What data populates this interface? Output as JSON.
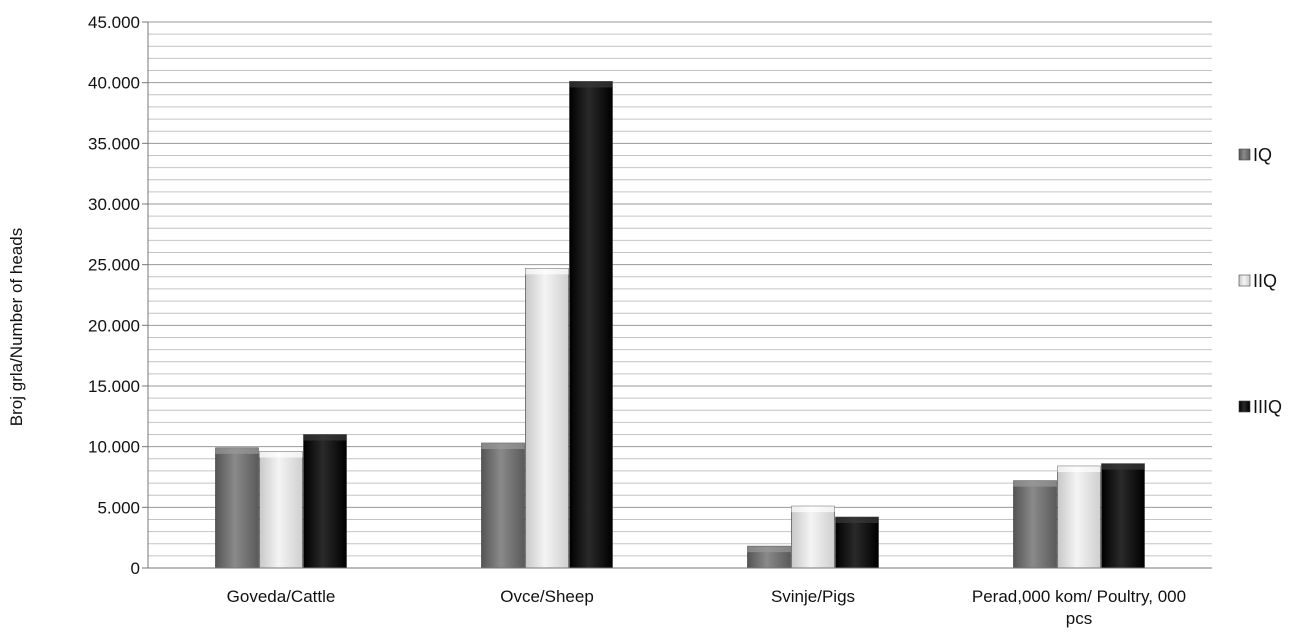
{
  "chart_data": {
    "type": "bar",
    "title": "",
    "xlabel": "",
    "ylabel": "Broj grla/Number of heads",
    "ylim": [
      0,
      45000
    ],
    "y_ticks": [
      "0",
      "5.000",
      "10.000",
      "15.000",
      "20.000",
      "25.000",
      "30.000",
      "35.000",
      "40.000",
      "45.000"
    ],
    "grid": true,
    "legend_position": "right",
    "categories": [
      [
        "Goveda/Cattle"
      ],
      [
        "Ovce/Sheep"
      ],
      [
        "Svinje/Pigs"
      ],
      [
        "Perad,000 kom/ Poultry, 000",
        "pcs"
      ]
    ],
    "series": [
      {
        "name": "IQ",
        "values": [
          9900,
          10300,
          1800,
          7200
        ],
        "color": "#6e6e6e"
      },
      {
        "name": "IIQ",
        "values": [
          9600,
          24700,
          5100,
          8400
        ],
        "color": "#e6e6e6"
      },
      {
        "name": "IIIQ",
        "values": [
          11000,
          40100,
          4200,
          8600
        ],
        "color": "#0f0f0f"
      }
    ]
  }
}
